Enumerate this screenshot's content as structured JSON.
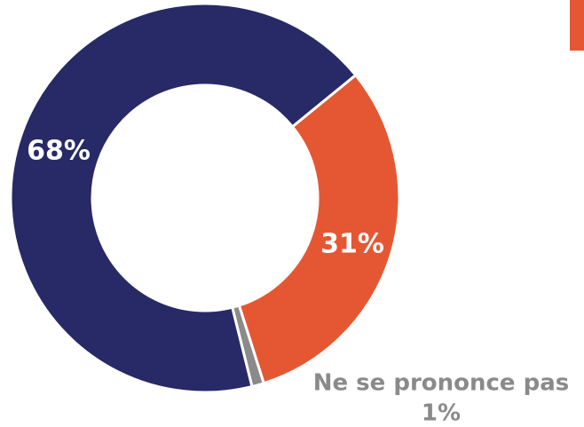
{
  "chart_data": {
    "type": "pie",
    "categories": [
      null,
      "Ne se prononce pas",
      null
    ],
    "values": [
      31,
      1,
      68
    ],
    "value_labels": [
      "31%",
      "1%",
      "68%"
    ],
    "colors": [
      "#e55733",
      "#8a8a8a",
      "#272a66"
    ]
  }
}
